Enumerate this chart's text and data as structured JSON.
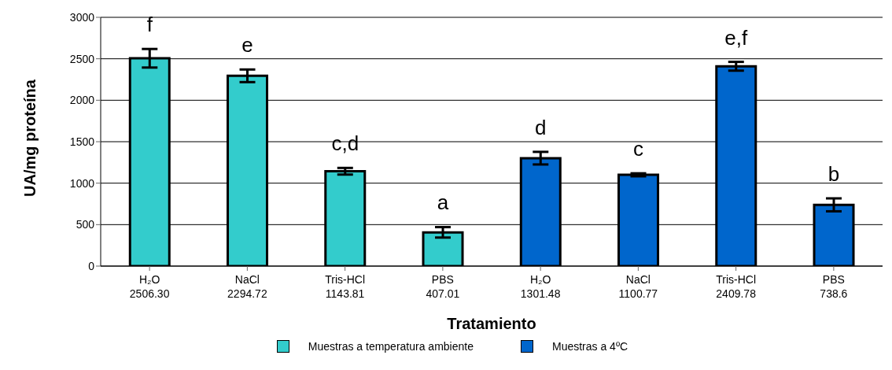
{
  "chart_data": {
    "type": "bar",
    "xlabel": "Tratamiento",
    "ylabel": "UA/mg proteína",
    "categories": [
      "H₂O",
      "NaCl",
      "Tris-HCl",
      "PBS",
      "H₂O",
      "NaCl",
      "Tris-HCl",
      "PBS"
    ],
    "series": [
      {
        "name": "Muestras a temperatura ambiente",
        "color": "#33cccc",
        "values": [
          2506.3,
          2294.72,
          1143.81,
          407.01,
          null,
          null,
          null,
          null
        ],
        "errors": [
          112,
          76,
          40,
          63,
          null,
          null,
          null,
          null
        ],
        "value_labels": [
          "2506.30",
          "2294.72",
          "1143.81",
          "407.01",
          null,
          null,
          null,
          null
        ]
      },
      {
        "name": "Muestras a 4ºC",
        "color": "#0066cc",
        "values": [
          null,
          null,
          null,
          null,
          1301.48,
          1100.77,
          2409.78,
          738.6
        ],
        "errors": [
          null,
          null,
          null,
          null,
          76,
          18,
          53,
          78
        ],
        "value_labels": [
          null,
          null,
          null,
          null,
          "1301.48",
          "1100.77",
          "2409.78",
          "738.6"
        ]
      }
    ],
    "ylim": [
      0,
      3000
    ],
    "yticks": [
      0,
      500,
      1000,
      1500,
      2000,
      2500,
      3000
    ],
    "grid": "y",
    "legend": "bottom",
    "annotations": [
      "f",
      "e",
      "c,d",
      "a",
      "d",
      "c",
      "e,f",
      "b"
    ]
  }
}
